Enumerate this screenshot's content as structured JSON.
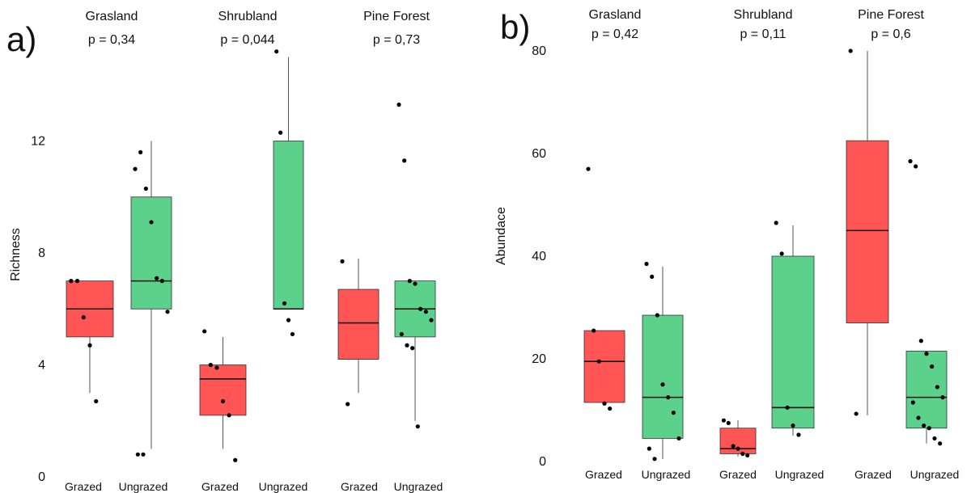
{
  "colors": {
    "grazed": "#ff5555",
    "ungrazed": "#5cd18c",
    "outline": "#333333",
    "point": "#000000"
  },
  "chart_data": [
    {
      "type": "box",
      "panel_label": "a)",
      "ylabel": "Richness",
      "ylim": [
        0,
        16
      ],
      "yticks": [
        0,
        4,
        8,
        12
      ],
      "group_labels": [
        "Grazed",
        "Ungrazed"
      ],
      "facets": [
        {
          "name": "Grasland",
          "p_value": "p = 0,34",
          "boxes": [
            {
              "group": "Grazed",
              "q1": 5,
              "median": 6,
              "q3": 7,
              "whisker_low": 3,
              "whisker_high": 7,
              "points": [
                7,
                7,
                5.7,
                4.7,
                2.7
              ]
            },
            {
              "group": "Ungrazed",
              "q1": 6,
              "median": 7,
              "q3": 10,
              "whisker_low": 1,
              "whisker_high": 12,
              "points": [
                11,
                11.6,
                10.3,
                9.1,
                7.1,
                7,
                5.9,
                0.8,
                0.8
              ]
            }
          ]
        },
        {
          "name": "Shrubland",
          "p_value": "p = 0,044",
          "boxes": [
            {
              "group": "Grazed",
              "q1": 2.2,
              "median": 3.5,
              "q3": 4,
              "whisker_low": 1,
              "whisker_high": 5,
              "points": [
                5.2,
                4,
                3.9,
                2.7,
                2.2,
                0.6
              ]
            },
            {
              "group": "Ungrazed",
              "q1": 6,
              "median": 6,
              "q3": 12,
              "whisker_low": 6,
              "whisker_high": 15,
              "points": [
                15.2,
                12.3,
                6.2,
                5.6,
                5.1
              ]
            }
          ]
        },
        {
          "name": "Pine Forest",
          "p_value": "p = 0,73",
          "boxes": [
            {
              "group": "Grazed",
              "q1": 4.2,
              "median": 5.5,
              "q3": 6.7,
              "whisker_low": 3,
              "whisker_high": 7.8,
              "points": [
                7.7,
                2.6
              ]
            },
            {
              "group": "Ungrazed",
              "q1": 5,
              "median": 6,
              "q3": 7,
              "whisker_low": 2,
              "whisker_high": 7,
              "points": [
                13.3,
                11.3,
                7,
                6.9,
                6,
                5.9,
                5.6,
                5.1,
                4.7,
                4.6,
                1.8
              ]
            }
          ]
        }
      ]
    },
    {
      "type": "box",
      "panel_label": "b)",
      "ylabel": "Abundace",
      "ylim": [
        0,
        80
      ],
      "yticks": [
        0,
        20,
        40,
        60,
        80
      ],
      "group_labels": [
        "Grazed",
        "Ungrazed"
      ],
      "facets": [
        {
          "name": "Grasland",
          "p_value": "p = 0,42",
          "boxes": [
            {
              "group": "Grazed",
              "q1": 11.5,
              "median": 19.5,
              "q3": 25.5,
              "whisker_low": 11.5,
              "whisker_high": 25.5,
              "points": [
                57,
                25.5,
                19.5,
                11.3,
                10.3
              ]
            },
            {
              "group": "Ungrazed",
              "q1": 4.5,
              "median": 12.5,
              "q3": 28.5,
              "whisker_low": 0.5,
              "whisker_high": 38,
              "points": [
                38.5,
                36,
                28.5,
                15,
                12.5,
                9.5,
                4.5,
                2.5,
                0.5
              ]
            }
          ]
        },
        {
          "name": "Shrubland",
          "p_value": "p = 0,11",
          "boxes": [
            {
              "group": "Grazed",
              "q1": 1.5,
              "median": 2.5,
              "q3": 6.5,
              "whisker_low": 1,
              "whisker_high": 8,
              "points": [
                8,
                7.5,
                3,
                2.5,
                1.5,
                1.2
              ]
            },
            {
              "group": "Ungrazed",
              "q1": 6.5,
              "median": 10.5,
              "q3": 40,
              "whisker_low": 5,
              "whisker_high": 46,
              "points": [
                46.5,
                40.5,
                10.5,
                7,
                5.2
              ]
            }
          ]
        },
        {
          "name": "Pine Forest",
          "p_value": "p = 0,6",
          "boxes": [
            {
              "group": "Grazed",
              "q1": 27,
              "median": 45,
              "q3": 62.5,
              "whisker_low": 9,
              "whisker_high": 80,
              "points": [
                80,
                9.3
              ]
            },
            {
              "group": "Ungrazed",
              "q1": 6.5,
              "median": 12.5,
              "q3": 21.5,
              "whisker_low": 3.5,
              "whisker_high": 21.5,
              "points": [
                58.5,
                57.5,
                23.5,
                21,
                18.5,
                14.5,
                12.5,
                11.5,
                8.5,
                7,
                6.5,
                4.5,
                3.5
              ]
            }
          ]
        }
      ]
    }
  ]
}
